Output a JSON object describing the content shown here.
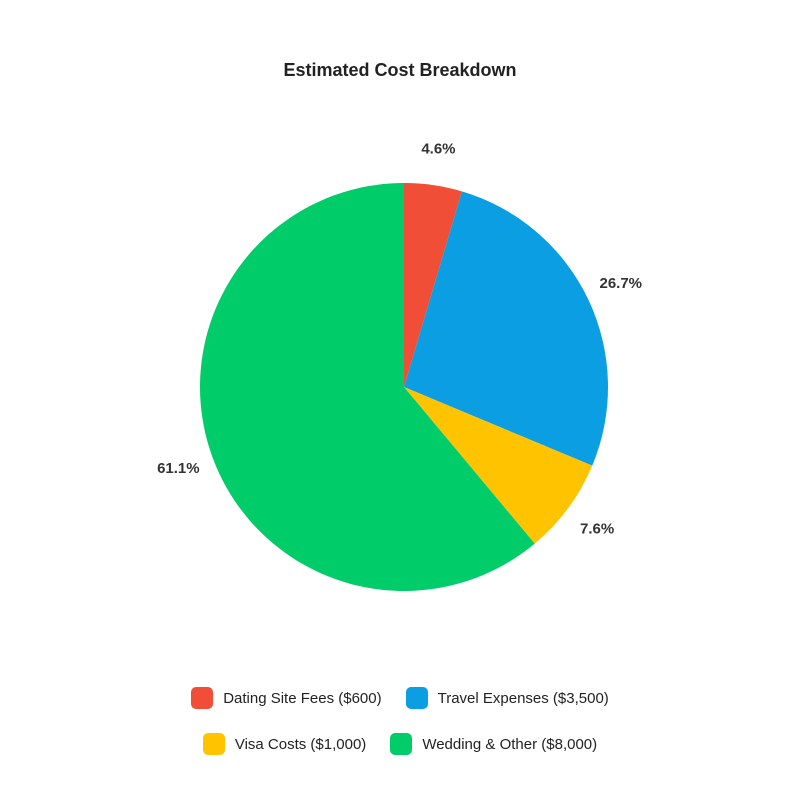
{
  "chart_data": {
    "type": "pie",
    "title": "Estimated Cost Breakdown",
    "slices": [
      {
        "label": "Dating Site Fees ($600)",
        "value": 600,
        "percent_label": "4.6%",
        "color": "#f04e37"
      },
      {
        "label": "Travel Expenses ($3,500)",
        "value": 3500,
        "percent_label": "26.7%",
        "color": "#0b9ee3"
      },
      {
        "label": "Visa Costs ($1,000)",
        "value": 1000,
        "percent_label": "7.6%",
        "color": "#ffc300"
      },
      {
        "label": "Wedding & Other ($8,000)",
        "value": 8000,
        "percent_label": "61.1%",
        "color": "#00cc6a"
      }
    ],
    "legend_position": "bottom"
  }
}
